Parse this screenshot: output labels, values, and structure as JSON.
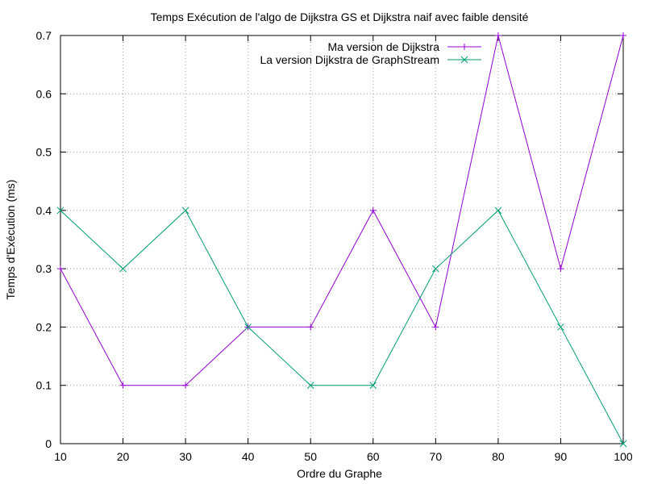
{
  "chart_data": {
    "type": "line",
    "title": "Temps Exécution de l'algo de Dijkstra GS et Dijkstra naif avec faible densité",
    "xlabel": "Ordre du Graphe",
    "ylabel": "Temps d'Exécution (ms)",
    "x": [
      10,
      20,
      30,
      40,
      50,
      60,
      70,
      80,
      90,
      100
    ],
    "xlim": [
      10,
      100
    ],
    "ylim": [
      0,
      0.7
    ],
    "x_ticks": [
      "10",
      "20",
      "30",
      "40",
      "50",
      "60",
      "70",
      "80",
      "90",
      "100"
    ],
    "y_ticks": [
      "0",
      "0.1",
      "0.2",
      "0.3",
      "0.4",
      "0.5",
      "0.6",
      "0.7"
    ],
    "grid": true,
    "legend_position": "top-right",
    "series": [
      {
        "name": "Ma version de Dijkstra",
        "color": "#9400d3",
        "marker": "plus",
        "values": [
          0.3,
          0.1,
          0.1,
          0.2,
          0.2,
          0.4,
          0.2,
          0.7,
          0.3,
          0.7
        ]
      },
      {
        "name": "La version Dijkstra de GraphStream",
        "color": "#009e73",
        "marker": "cross",
        "values": [
          0.4,
          0.3,
          0.4,
          0.2,
          0.1,
          0.1,
          0.3,
          0.4,
          0.2,
          0.0
        ]
      }
    ]
  }
}
